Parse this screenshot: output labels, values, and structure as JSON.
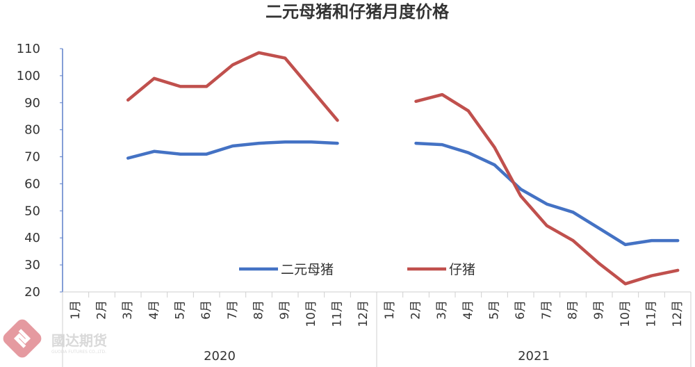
{
  "chart_data": {
    "type": "line",
    "title": "二元母猪和仔猪月度价格",
    "years": [
      "2020",
      "2021"
    ],
    "months": [
      "1月",
      "2月",
      "3月",
      "4月",
      "5月",
      "6月",
      "7月",
      "8月",
      "9月",
      "10月",
      "11月",
      "12月"
    ],
    "ylim": [
      20,
      110
    ],
    "yticks": [
      20,
      30,
      40,
      50,
      60,
      70,
      80,
      90,
      100,
      110
    ],
    "grid": false,
    "legend": "bottom-center",
    "series": [
      {
        "name": "二元母猪",
        "color": "#4472c4",
        "values": [
          [
            null,
            null,
            69.5,
            72,
            71,
            71,
            74,
            75,
            75.5,
            75.5,
            75,
            null
          ],
          [
            null,
            75,
            74.5,
            71.5,
            67,
            58,
            52.5,
            49.5,
            43.5,
            37.5,
            39,
            39
          ]
        ]
      },
      {
        "name": "仔猪",
        "color": "#c0504d",
        "values": [
          [
            null,
            null,
            91,
            99,
            96,
            96,
            104,
            108.5,
            106.5,
            95,
            83.5,
            null
          ],
          [
            null,
            90.5,
            93,
            87,
            73.5,
            55.5,
            44.5,
            39,
            30.5,
            23,
            26,
            28
          ]
        ]
      }
    ]
  },
  "watermark": {
    "name": "國达期货",
    "sub": "GUODA FUTURES CO.,LTD."
  }
}
